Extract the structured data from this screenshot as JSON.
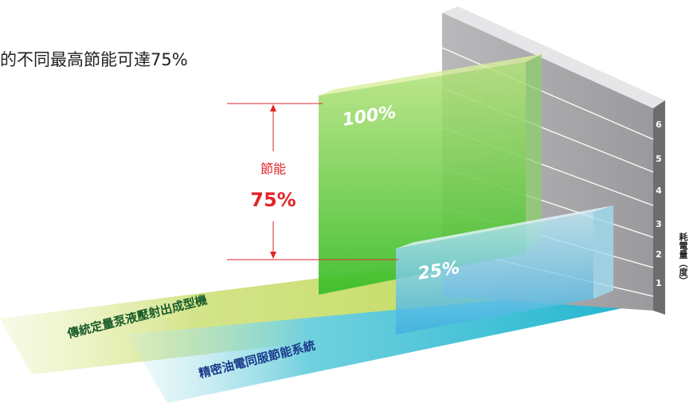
{
  "headline": "的不同最高節能可達75%",
  "traditional": {
    "label": "傳統定量泵液壓射出成型機",
    "value_label": "100%"
  },
  "servo": {
    "label": "精密油電同服節能系統",
    "value_label": "25%"
  },
  "savings": {
    "label": "節能",
    "value_label": "75%"
  },
  "wall": {
    "levels": [
      1,
      2,
      3,
      4,
      5,
      6
    ],
    "axis_label": "耗電量（度）"
  }
}
